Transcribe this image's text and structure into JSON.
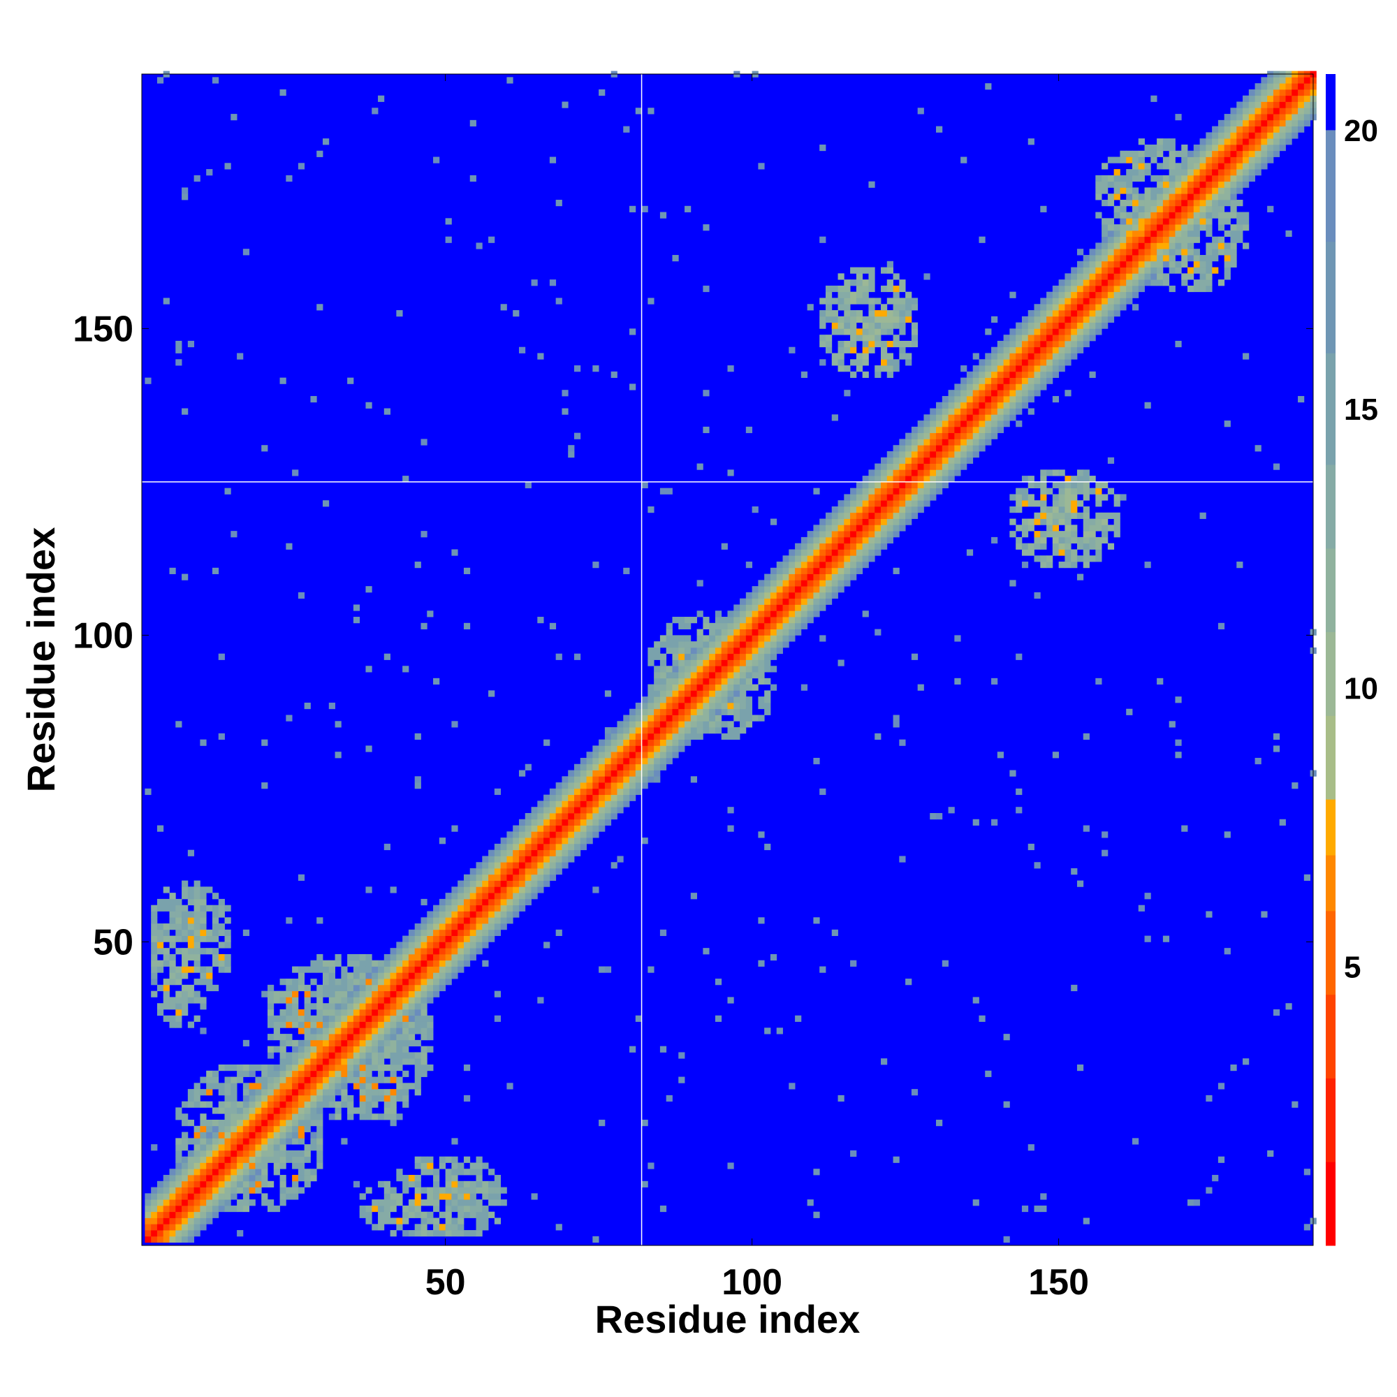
{
  "chart_data": {
    "type": "heatmap",
    "title": "",
    "xlabel": "Residue index",
    "ylabel": "Residue index",
    "xlim": [
      1,
      191
    ],
    "ylim": [
      1,
      191
    ],
    "x_ticks": [
      50,
      100,
      150
    ],
    "y_ticks": [
      50,
      100,
      150
    ],
    "grid": false,
    "reference_lines": {
      "x": 82,
      "y": 125
    },
    "colorbar": {
      "ticks": [
        5,
        10,
        15,
        20
      ],
      "range": [
        0,
        21
      ],
      "position": "right",
      "levels": [
        {
          "max": 1.5,
          "color": "#ff0000"
        },
        {
          "max": 3,
          "color": "#ff2200"
        },
        {
          "max": 4.5,
          "color": "#ff4400"
        },
        {
          "max": 6,
          "color": "#ff6600"
        },
        {
          "max": 7,
          "color": "#ff8800"
        },
        {
          "max": 8,
          "color": "#ffaa00"
        },
        {
          "max": 9.5,
          "color": "#a8bd88"
        },
        {
          "max": 11,
          "color": "#9cb896"
        },
        {
          "max": 12.5,
          "color": "#90b29e"
        },
        {
          "max": 14,
          "color": "#86aba6"
        },
        {
          "max": 16,
          "color": "#7aa2ac"
        },
        {
          "max": 18,
          "color": "#6f96b4"
        },
        {
          "max": 20,
          "color": "#6a8dbd"
        },
        {
          "max": 999,
          "color": "#0000ff"
        }
      ]
    },
    "description_of_values": "Pairwise residue distance map; values are distances (approx.) between residues i and j, symmetric about the diagonal.",
    "diagonal_band": {
      "value_profile": [
        [
          0,
          0.5
        ],
        [
          1,
          3.8
        ],
        [
          2,
          5.5
        ],
        [
          3,
          7.2
        ],
        [
          4,
          9.5
        ],
        [
          5,
          12
        ],
        [
          6,
          15
        ],
        [
          7,
          18.5
        ]
      ]
    },
    "contact_clusters": [
      {
        "i": [
          110,
          127
        ],
        "j": [
          141,
          160
        ],
        "typical_value": 12,
        "min_value": 6.5
      },
      {
        "i": [
          155,
          175
        ],
        "j": [
          159,
          181
        ],
        "typical_value": 13,
        "min_value": 7
      },
      {
        "i": [
          82,
          100
        ],
        "j": [
          84,
          103
        ],
        "typical_value": 13,
        "min_value": 7
      },
      {
        "i": [
          20,
          45
        ],
        "j": [
          25,
          48
        ],
        "typical_value": 13,
        "min_value": 6
      },
      {
        "i": [
          1,
          15
        ],
        "j": [
          40,
          60
        ],
        "typical_value": 13,
        "min_value": 6.5
      },
      {
        "i": [
          35,
          60
        ],
        "j": [
          1,
          12
        ],
        "typical_value": 13,
        "min_value": 6.5
      },
      {
        "i": [
          5,
          30
        ],
        "j": [
          5,
          30
        ],
        "typical_value": 13,
        "min_value": 6
      }
    ]
  }
}
